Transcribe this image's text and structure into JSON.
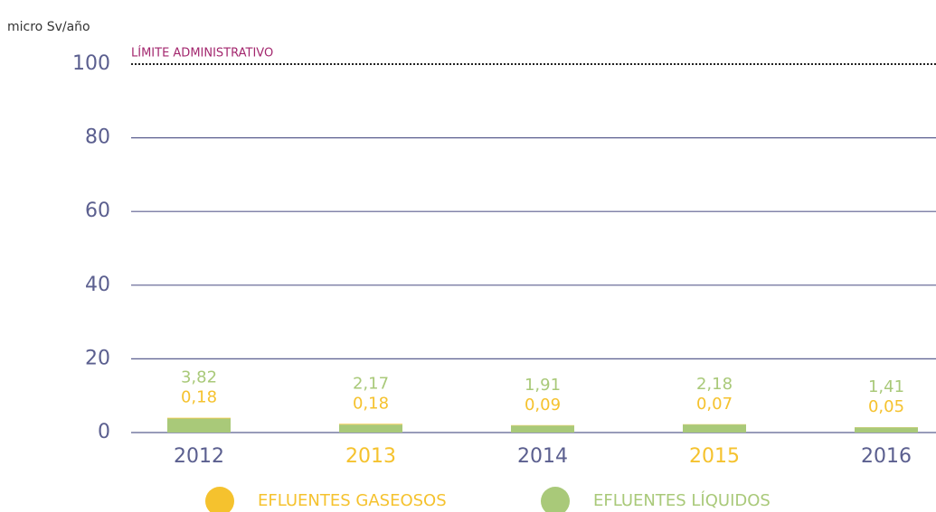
{
  "chart_data": {
    "type": "bar",
    "stacked": true,
    "y_label": "micro Sv/año",
    "categories": [
      "2012",
      "2013",
      "2014",
      "2015",
      "2016"
    ],
    "series": [
      {
        "name": "EFLUENTES LÍQUIDOS",
        "color": "#a9c979",
        "values": [
          3.82,
          2.17,
          1.91,
          2.18,
          1.41
        ],
        "value_labels": [
          "3,82",
          "2,17",
          "1,91",
          "2,18",
          "1,41"
        ]
      },
      {
        "name": "EFLUENTES GASEOSOS",
        "color": "#f5c22e",
        "values": [
          0.18,
          0.18,
          0.09,
          0.07,
          0.05
        ],
        "value_labels": [
          "0,18",
          "0,18",
          "0,09",
          "0,07",
          "0,05"
        ]
      }
    ],
    "annotations": [
      {
        "text": "LÍMITE ADMINISTRATIVO",
        "y": 100
      }
    ],
    "ylim": [
      0,
      100
    ],
    "yticks": [
      0,
      20,
      40,
      60,
      80,
      100
    ],
    "grid": true,
    "legend": "bottom"
  }
}
